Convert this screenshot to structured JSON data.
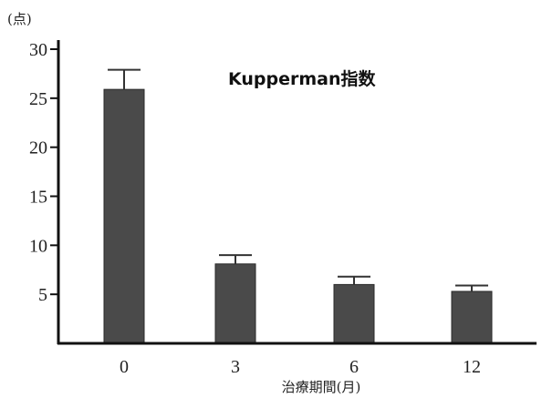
{
  "chart_data": {
    "type": "bar",
    "title": "Kupperman指数",
    "xlabel": "治療期間(月)",
    "ylabel_unit": "(点)",
    "categories": [
      "0",
      "3",
      "6",
      "12"
    ],
    "values": [
      25.9,
      8.1,
      6.0,
      5.3
    ],
    "error_upper": [
      27.9,
      9.0,
      6.8,
      5.9
    ],
    "ylim": [
      0,
      30
    ],
    "yticks": [
      5,
      10,
      15,
      20,
      25,
      30
    ],
    "grid": false,
    "legend": "none",
    "bar_color": "#4a4a4a",
    "axis_color": "#111111"
  }
}
